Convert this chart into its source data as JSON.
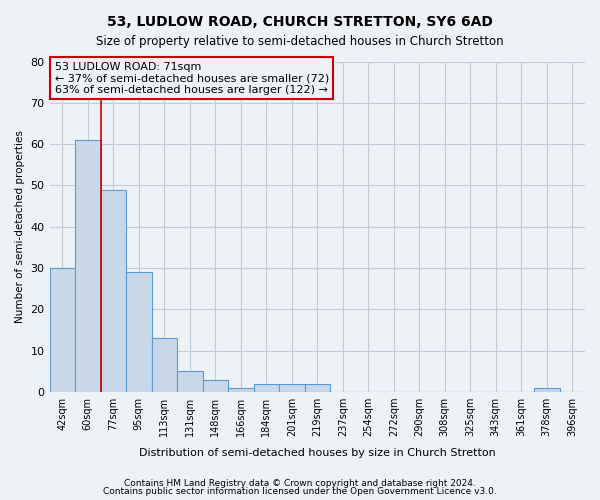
{
  "title": "53, LUDLOW ROAD, CHURCH STRETTON, SY6 6AD",
  "subtitle": "Size of property relative to semi-detached houses in Church Stretton",
  "xlabel": "Distribution of semi-detached houses by size in Church Stretton",
  "ylabel": "Number of semi-detached properties",
  "footer_line1": "Contains HM Land Registry data © Crown copyright and database right 2024.",
  "footer_line2": "Contains public sector information licensed under the Open Government Licence v3.0.",
  "categories": [
    "42sqm",
    "60sqm",
    "77sqm",
    "95sqm",
    "113sqm",
    "131sqm",
    "148sqm",
    "166sqm",
    "184sqm",
    "201sqm",
    "219sqm",
    "237sqm",
    "254sqm",
    "272sqm",
    "290sqm",
    "308sqm",
    "325sqm",
    "343sqm",
    "361sqm",
    "378sqm",
    "396sqm"
  ],
  "values": [
    30,
    61,
    49,
    29,
    13,
    5,
    3,
    1,
    2,
    2,
    2,
    0,
    0,
    0,
    0,
    0,
    0,
    0,
    0,
    1,
    0
  ],
  "bar_color": "#c8d8e8",
  "bar_edge_color": "#5b9bd5",
  "grid_color": "#c0ccda",
  "background_color": "#eef2f7",
  "ann_line1": "53 LUDLOW ROAD: 71sqm",
  "ann_line2": "← 37% of semi-detached houses are smaller (72)",
  "ann_line3": "63% of semi-detached houses are larger (122) →",
  "annotation_box_color": "#cc0000",
  "red_line_x": 1.5,
  "ylim": [
    0,
    80
  ],
  "yticks": [
    0,
    10,
    20,
    30,
    40,
    50,
    60,
    70,
    80
  ]
}
